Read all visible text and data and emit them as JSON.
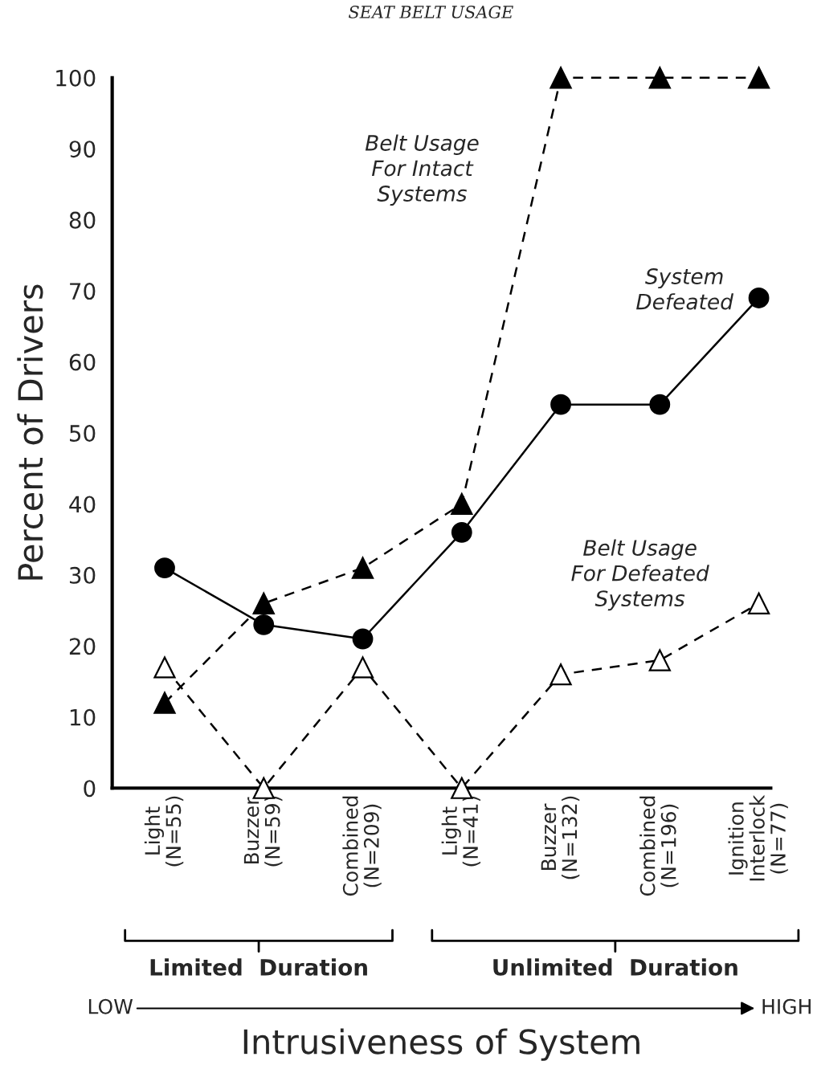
{
  "chart_data": {
    "type": "line",
    "title": "SEAT BELT USAGE",
    "xlabel": "Intrusiveness of System",
    "ylabel": "Percent of Drivers",
    "categories": [
      "Light\n(N=55)",
      "Buzzer\n(N=59)",
      "Combined\n(N=209)",
      "Light\n(N=41)",
      "Buzzer\n(N=132)",
      "Combined\n(N=196)",
      "Ignition\nInterlock\n(N=77)"
    ],
    "series": [
      {
        "name": "System\nDefeated",
        "color": "#000000",
        "marker": "circle",
        "line_style": "solid",
        "values": [
          31,
          23,
          21,
          36,
          54,
          54,
          69
        ]
      },
      {
        "name": "Belt Usage\nFor Intact\nSystems",
        "color": "#000000",
        "marker": "triangle",
        "line_style": "dashed",
        "values": [
          12,
          26,
          31,
          40,
          100,
          100,
          100
        ]
      },
      {
        "name": "Belt Usage\nFor Defeated\nSystems",
        "color": "#ffffff",
        "marker": "triangle",
        "line_style": "dashed",
        "values": [
          17,
          0,
          17,
          0,
          16,
          18,
          26
        ]
      }
    ],
    "annotations": [
      "Limited  Duration",
      "Unlimited  Duration",
      "LOW",
      "HIGH"
    ],
    "ylim": [
      0,
      100
    ],
    "yticks": [
      0,
      10,
      20,
      30,
      40,
      50,
      60,
      70,
      80,
      90,
      100
    ],
    "grid": false,
    "legend": false
  }
}
